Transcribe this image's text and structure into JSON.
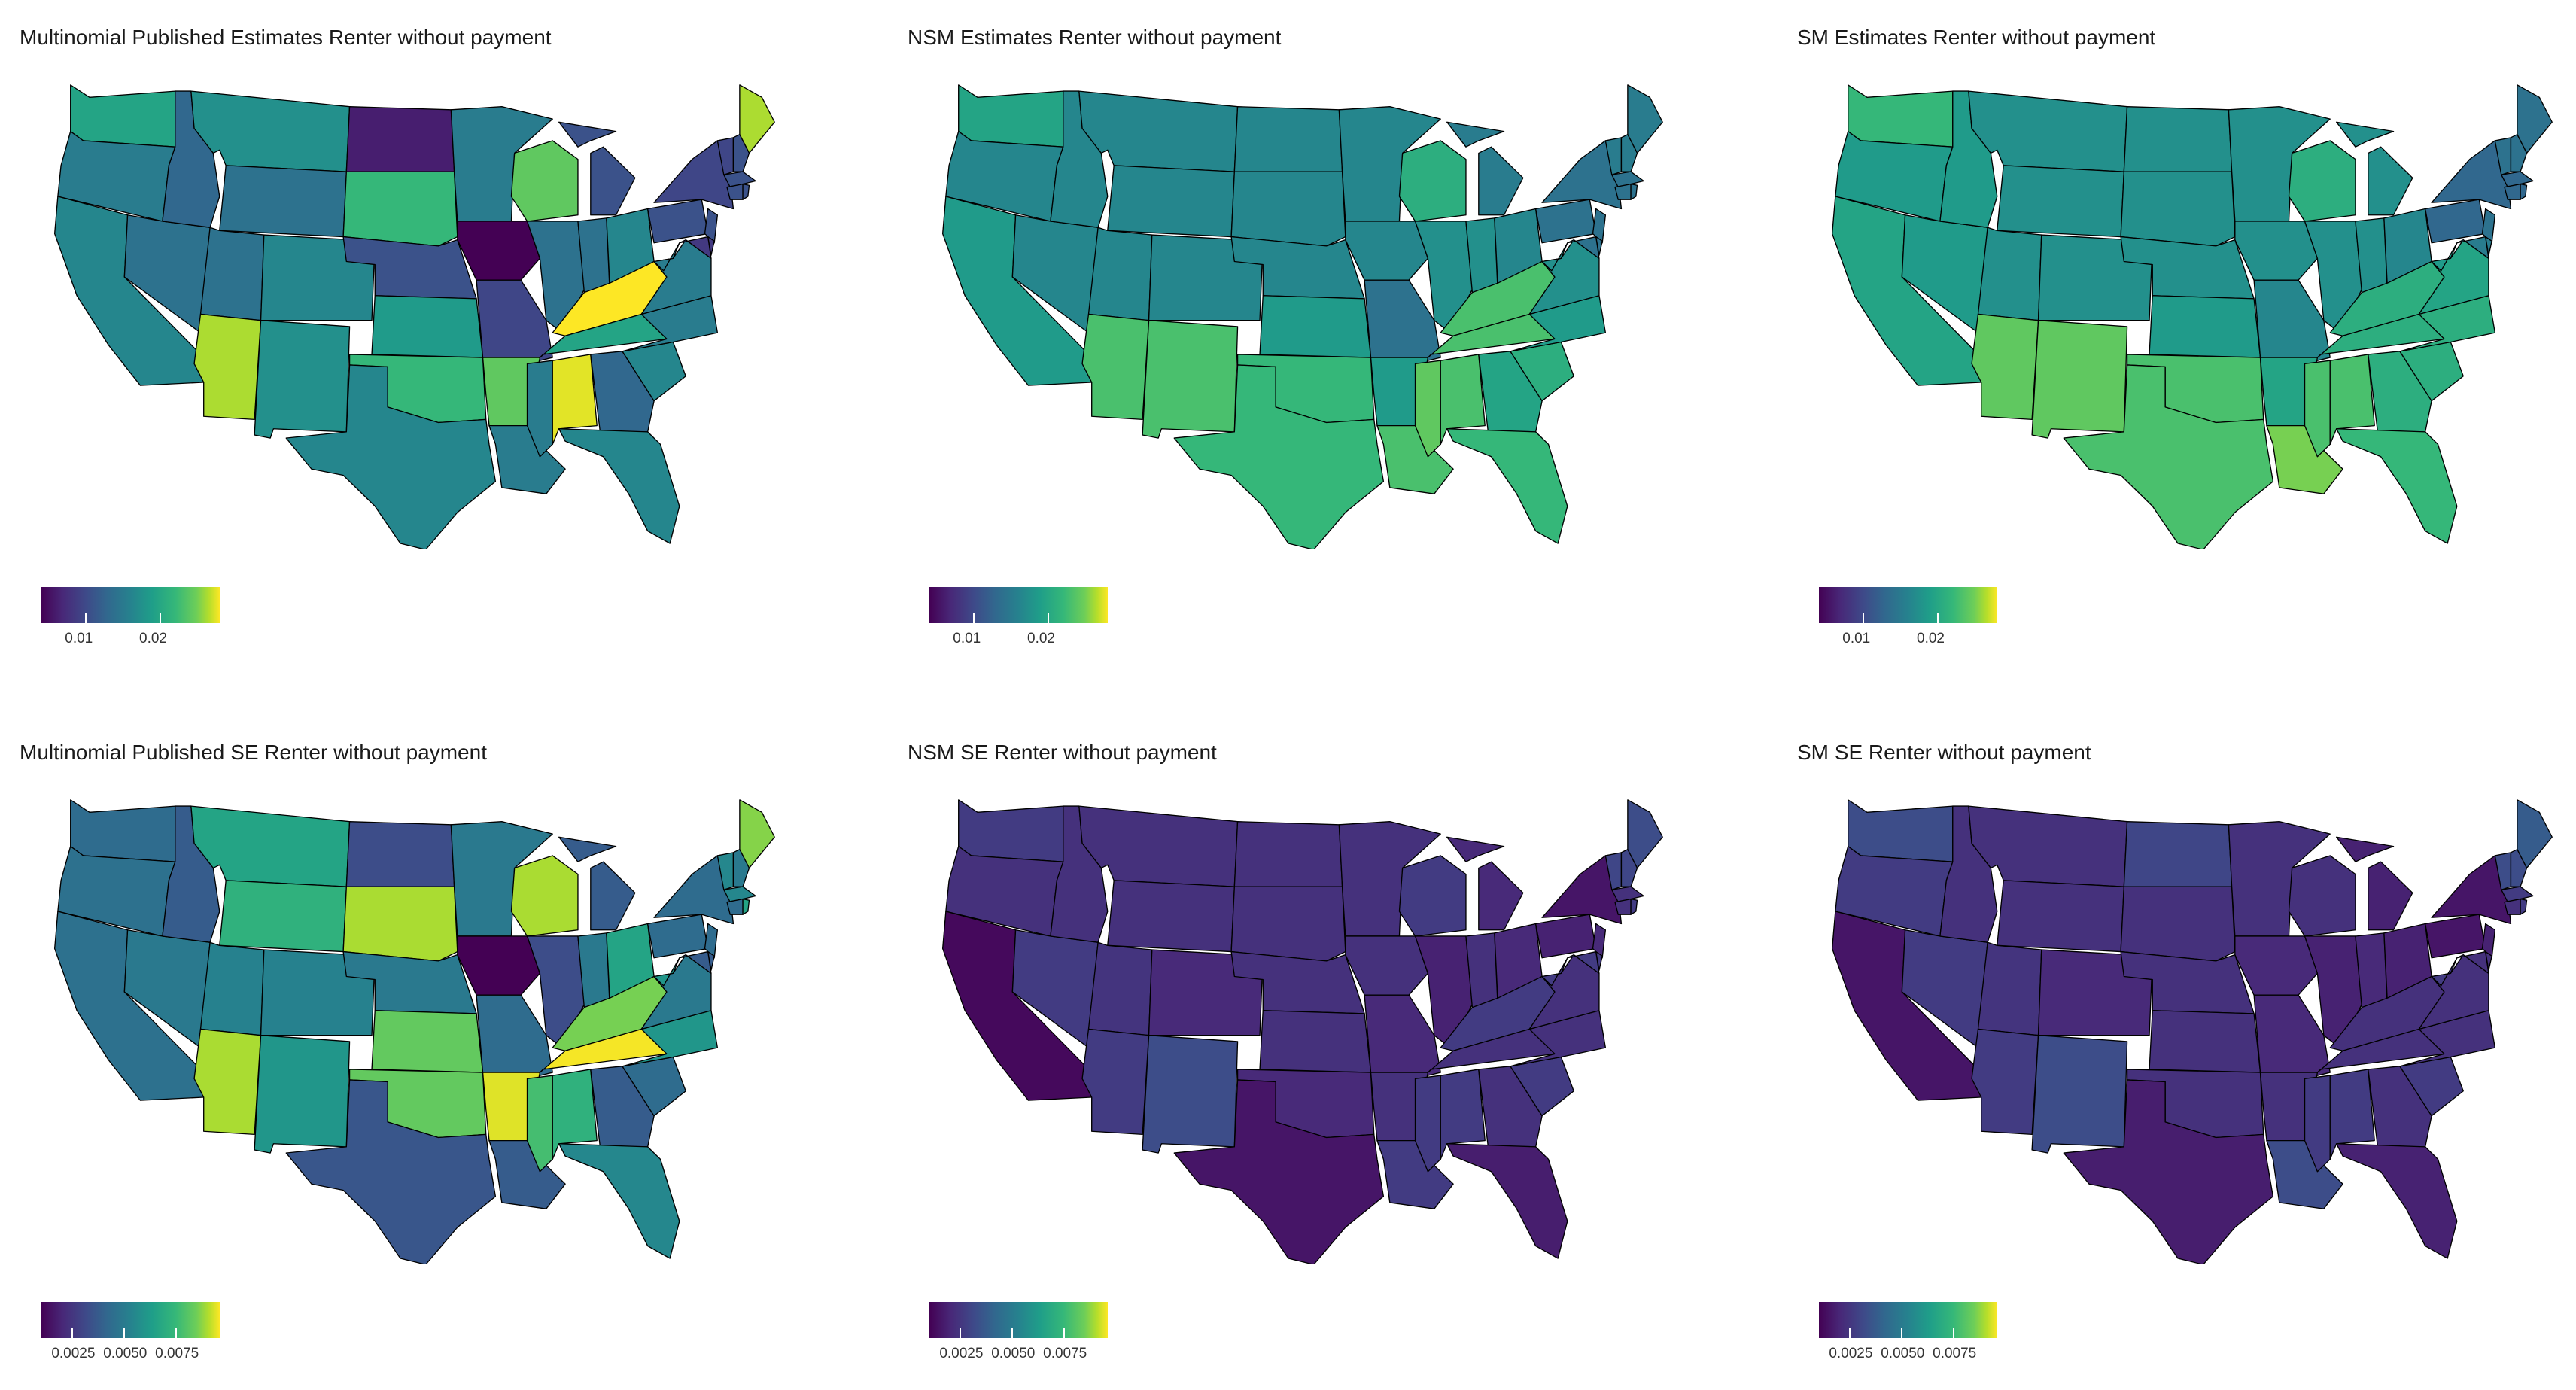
{
  "panels": [
    {
      "title": "Multinomial Published Estimates Renter without payment",
      "legend": {
        "min": 0.004,
        "max": 0.028,
        "ticks": [
          {
            "value": 0.01,
            "label": "0.01"
          },
          {
            "value": 0.02,
            "label": "0.02"
          }
        ]
      },
      "state_values": {
        "WA": 0.018,
        "OR": 0.014,
        "CA": 0.015,
        "NV": 0.013,
        "ID": 0.012,
        "MT": 0.016,
        "WY": 0.013,
        "UT": 0.013,
        "AZ": 0.025,
        "CO": 0.015,
        "NM": 0.016,
        "ND": 0.006,
        "SD": 0.02,
        "NE": 0.01,
        "KS": 0.017,
        "OK": 0.02,
        "TX": 0.015,
        "MN": 0.014,
        "IA": 0.004,
        "MO": 0.009,
        "AR": 0.022,
        "LA": 0.014,
        "WI": 0.022,
        "IL": 0.013,
        "MI": 0.01,
        "IN": 0.013,
        "OH": 0.015,
        "KY": 0.028,
        "TN": 0.018,
        "MS": 0.014,
        "AL": 0.027,
        "GA": 0.012,
        "FL": 0.015,
        "SC": 0.015,
        "NC": 0.014,
        "VA": 0.014,
        "WV": 0.014,
        "PA": 0.01,
        "NY": 0.009,
        "NJ": 0.01,
        "MD": 0.008,
        "DE": 0.008,
        "ME": 0.025,
        "VT": 0.009,
        "NH": 0.01,
        "MA": 0.01,
        "CT": 0.01,
        "RI": 0.01
      }
    },
    {
      "title": "NSM Estimates Renter without payment",
      "legend": {
        "min": 0.004,
        "max": 0.028,
        "ticks": [
          {
            "value": 0.01,
            "label": "0.01"
          },
          {
            "value": 0.02,
            "label": "0.02"
          }
        ]
      },
      "state_values": {
        "WA": 0.018,
        "OR": 0.015,
        "CA": 0.017,
        "NV": 0.015,
        "ID": 0.015,
        "MT": 0.015,
        "WY": 0.015,
        "UT": 0.015,
        "AZ": 0.021,
        "CO": 0.015,
        "NM": 0.021,
        "ND": 0.015,
        "SD": 0.015,
        "NE": 0.015,
        "KS": 0.017,
        "OK": 0.02,
        "TX": 0.02,
        "MN": 0.015,
        "IA": 0.015,
        "MO": 0.013,
        "AR": 0.017,
        "LA": 0.021,
        "WI": 0.019,
        "IL": 0.016,
        "MI": 0.014,
        "IN": 0.016,
        "OH": 0.015,
        "KY": 0.021,
        "TN": 0.021,
        "MS": 0.022,
        "AL": 0.021,
        "GA": 0.018,
        "FL": 0.02,
        "SC": 0.019,
        "NC": 0.017,
        "VA": 0.016,
        "WV": 0.016,
        "PA": 0.013,
        "NY": 0.013,
        "NJ": 0.013,
        "MD": 0.013,
        "DE": 0.013,
        "ME": 0.014,
        "VT": 0.014,
        "NH": 0.014,
        "MA": 0.013,
        "CT": 0.013,
        "RI": 0.013
      }
    },
    {
      "title": "SM Estimates Renter without payment",
      "legend": {
        "min": 0.004,
        "max": 0.028,
        "ticks": [
          {
            "value": 0.01,
            "label": "0.01"
          },
          {
            "value": 0.02,
            "label": "0.02"
          }
        ]
      },
      "state_values": {
        "WA": 0.02,
        "OR": 0.017,
        "CA": 0.018,
        "NV": 0.017,
        "ID": 0.017,
        "MT": 0.016,
        "WY": 0.016,
        "UT": 0.016,
        "AZ": 0.022,
        "CO": 0.016,
        "NM": 0.022,
        "ND": 0.016,
        "SD": 0.016,
        "NE": 0.016,
        "KS": 0.017,
        "OK": 0.021,
        "TX": 0.021,
        "MN": 0.016,
        "IA": 0.016,
        "MO": 0.015,
        "AR": 0.018,
        "LA": 0.023,
        "WI": 0.019,
        "IL": 0.016,
        "MI": 0.016,
        "IN": 0.016,
        "OH": 0.015,
        "KY": 0.019,
        "TN": 0.019,
        "MS": 0.021,
        "AL": 0.021,
        "GA": 0.019,
        "FL": 0.02,
        "SC": 0.019,
        "NC": 0.019,
        "VA": 0.018,
        "WV": 0.017,
        "PA": 0.012,
        "NY": 0.012,
        "NJ": 0.013,
        "MD": 0.014,
        "DE": 0.014,
        "ME": 0.013,
        "VT": 0.013,
        "NH": 0.013,
        "MA": 0.012,
        "CT": 0.012,
        "RI": 0.012
      }
    },
    {
      "title": "Multinomial Published SE Renter without payment",
      "legend": {
        "min": 0.001,
        "max": 0.0096,
        "ticks": [
          {
            "value": 0.0025,
            "label": "0.0025"
          },
          {
            "value": 0.005,
            "label": "0.0050"
          },
          {
            "value": 0.0075,
            "label": "0.0075"
          }
        ]
      },
      "state_values": {
        "WA": 0.004,
        "OR": 0.0042,
        "CA": 0.0042,
        "NV": 0.0045,
        "ID": 0.0035,
        "MT": 0.006,
        "WY": 0.0065,
        "UT": 0.0048,
        "AZ": 0.0085,
        "CO": 0.0048,
        "NM": 0.0055,
        "ND": 0.003,
        "SD": 0.0085,
        "NE": 0.0045,
        "KS": 0.0075,
        "OK": 0.0075,
        "TX": 0.0033,
        "MN": 0.0045,
        "IA": 0.001,
        "MO": 0.004,
        "AR": 0.0092,
        "LA": 0.0035,
        "WI": 0.0085,
        "IL": 0.003,
        "MI": 0.0035,
        "IN": 0.0045,
        "OH": 0.006,
        "KY": 0.0078,
        "TN": 0.0095,
        "MS": 0.007,
        "AL": 0.0065,
        "GA": 0.0035,
        "FL": 0.005,
        "SC": 0.004,
        "NC": 0.0055,
        "VA": 0.0045,
        "WV": 0.0055,
        "PA": 0.004,
        "NY": 0.004,
        "NJ": 0.004,
        "MD": 0.0035,
        "DE": 0.0035,
        "ME": 0.008,
        "VT": 0.005,
        "NH": 0.0045,
        "MA": 0.005,
        "CT": 0.004,
        "RI": 0.006
      }
    },
    {
      "title": "NSM SE Renter without payment",
      "legend": {
        "min": 0.001,
        "max": 0.0096,
        "ticks": [
          {
            "value": 0.0025,
            "label": "0.0025"
          },
          {
            "value": 0.005,
            "label": "0.0050"
          },
          {
            "value": 0.0075,
            "label": "0.0075"
          }
        ]
      },
      "state_values": {
        "WA": 0.0025,
        "OR": 0.0022,
        "CA": 0.0012,
        "NV": 0.0025,
        "ID": 0.0022,
        "MT": 0.0022,
        "WY": 0.0022,
        "UT": 0.0023,
        "AZ": 0.0025,
        "CO": 0.002,
        "NM": 0.003,
        "ND": 0.0022,
        "SD": 0.0022,
        "NE": 0.0022,
        "KS": 0.0022,
        "OK": 0.002,
        "TX": 0.0015,
        "MN": 0.0022,
        "IA": 0.0022,
        "MO": 0.002,
        "AR": 0.0022,
        "LA": 0.0025,
        "WI": 0.0025,
        "IL": 0.0018,
        "MI": 0.002,
        "IN": 0.0022,
        "OH": 0.002,
        "KY": 0.0025,
        "TN": 0.0022,
        "MS": 0.0025,
        "AL": 0.0025,
        "GA": 0.0022,
        "FL": 0.0017,
        "SC": 0.0025,
        "NC": 0.0022,
        "VA": 0.0022,
        "WV": 0.0025,
        "PA": 0.0018,
        "NY": 0.0015,
        "NJ": 0.002,
        "MD": 0.0025,
        "DE": 0.0025,
        "ME": 0.003,
        "VT": 0.0028,
        "NH": 0.0028,
        "MA": 0.0022,
        "CT": 0.0022,
        "RI": 0.0025
      }
    },
    {
      "title": "SM SE Renter without payment",
      "legend": {
        "min": 0.001,
        "max": 0.0096,
        "ticks": [
          {
            "value": 0.0025,
            "label": "0.0025"
          },
          {
            "value": 0.005,
            "label": "0.0050"
          },
          {
            "value": 0.0075,
            "label": "0.0075"
          }
        ]
      },
      "state_values": {
        "WA": 0.003,
        "OR": 0.0025,
        "CA": 0.0015,
        "NV": 0.0025,
        "ID": 0.0022,
        "MT": 0.0022,
        "WY": 0.0022,
        "UT": 0.0023,
        "AZ": 0.0025,
        "CO": 0.002,
        "NM": 0.003,
        "ND": 0.0028,
        "SD": 0.0022,
        "NE": 0.0022,
        "KS": 0.0022,
        "OK": 0.0022,
        "TX": 0.0017,
        "MN": 0.0022,
        "IA": 0.002,
        "MO": 0.002,
        "AR": 0.0022,
        "LA": 0.003,
        "WI": 0.0022,
        "IL": 0.0018,
        "MI": 0.0018,
        "IN": 0.002,
        "OH": 0.0018,
        "KY": 0.0022,
        "TN": 0.0022,
        "MS": 0.0025,
        "AL": 0.0025,
        "GA": 0.0022,
        "FL": 0.0018,
        "SC": 0.0025,
        "NC": 0.0022,
        "VA": 0.0022,
        "WV": 0.0025,
        "PA": 0.0015,
        "NY": 0.0015,
        "NJ": 0.0018,
        "MD": 0.0022,
        "DE": 0.0022,
        "ME": 0.0035,
        "VT": 0.003,
        "NH": 0.003,
        "MA": 0.0025,
        "CT": 0.0022,
        "RI": 0.0025
      }
    }
  ],
  "colors": {
    "viridis": [
      "#440154",
      "#482878",
      "#3e4a89",
      "#31688e",
      "#26828e",
      "#1f9e89",
      "#35b779",
      "#6ece58",
      "#b5de2b",
      "#fde725"
    ],
    "state_border": "#000000",
    "background": "#ffffff"
  }
}
